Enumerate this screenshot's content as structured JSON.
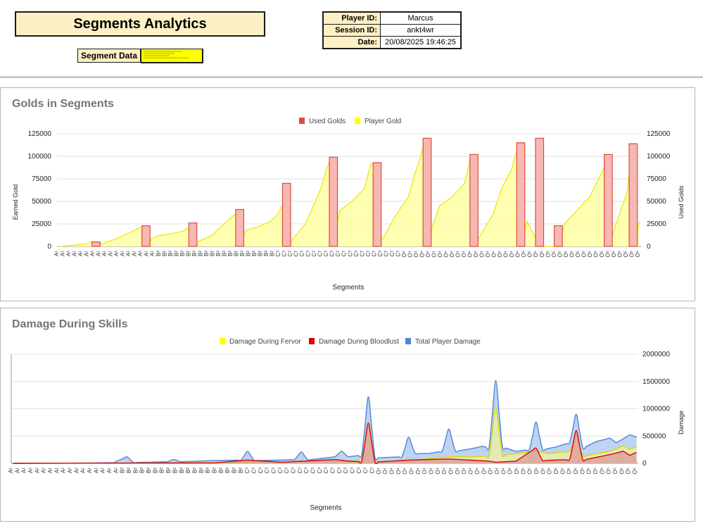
{
  "header": {
    "title": "Segments Analytics",
    "segment_data_label": "Segment Data",
    "segment_data_value": "==============================  =====  ============================= ======================== ================================ ==========",
    "info": [
      {
        "label": "Player ID:",
        "value": "Marcus"
      },
      {
        "label": "Session ID:",
        "value": "ankt4wr"
      },
      {
        "label": "Date:",
        "value": "20/08/2025 19:46:25"
      }
    ]
  },
  "colors": {
    "used_golds": "#dd4b3e",
    "player_gold": "#ffff00",
    "fervor": "#ffff00",
    "bloodlust": "#e00000",
    "total_damage": "#4a86d8"
  },
  "chart_data": [
    {
      "type": "area",
      "title": "Golds in Segments",
      "xlabel": "Segments",
      "ylabel": "Earned Gold",
      "ylabel_right": "Used Golds",
      "ylim": [
        0,
        125000
      ],
      "yticks": [
        0,
        25000,
        50000,
        75000,
        100000,
        125000
      ],
      "grid": true,
      "legend": "top-center",
      "x_labels": [
        "A¹",
        "A¹",
        "A¹",
        "A¹",
        "A¹",
        "A¹",
        "A¹",
        "A¹",
        "A¹",
        "A¹",
        "A¹",
        "A¹",
        "A¹",
        "A¹",
        "A¹",
        "A¹",
        "A¹",
        "B²",
        "B²",
        "B²",
        "B²",
        "B²",
        "B²",
        "B²",
        "B²",
        "B²",
        "B²",
        "B²",
        "B²",
        "B²",
        "B²",
        "B²",
        "B²",
        "B²",
        "B²",
        "B²",
        "B²",
        "C³",
        "C³",
        "C³",
        "C³",
        "C³",
        "C³",
        "C³",
        "C³",
        "C³",
        "C³",
        "C³",
        "C³",
        "C³",
        "C³",
        "C³",
        "C³",
        "C³",
        "C³",
        "C³",
        "C³",
        "C³",
        "O⁴",
        "O⁴",
        "O⁴",
        "O⁴",
        "O⁴",
        "O⁴",
        "O⁴",
        "O⁴",
        "O⁴",
        "O⁴",
        "O⁴",
        "O⁴",
        "O⁴",
        "O⁴",
        "O⁴",
        "O⁴",
        "O⁴",
        "O⁴",
        "O⁴",
        "O⁴",
        "O⁵",
        "O⁵",
        "O⁵",
        "O⁵",
        "O⁵",
        "O⁵",
        "O⁵",
        "O⁵",
        "O⁵",
        "O⁵",
        "O⁵",
        "O⁵",
        "O⁵",
        "O⁵",
        "O⁵",
        "O⁵",
        "O⁵",
        "O⁵",
        "O⁵",
        "O⁵"
      ],
      "segment_count": 187,
      "series": [
        {
          "name": "Used Golds",
          "kind": "spike",
          "points": [
            [
              12,
              5000
            ],
            [
              28,
              23000
            ],
            [
              43,
              26000
            ],
            [
              58,
              41000
            ],
            [
              73,
              70000
            ],
            [
              88,
              99000
            ],
            [
              102,
              93000
            ],
            [
              118,
              120000
            ],
            [
              133,
              102000
            ],
            [
              148,
              115000
            ],
            [
              154,
              120000
            ],
            [
              160,
              23000
            ],
            [
              176,
              102000
            ],
            [
              184,
              114000
            ]
          ]
        },
        {
          "name": "Player Gold",
          "kind": "area",
          "points": [
            [
              0,
              0
            ],
            [
              2,
              500
            ],
            [
              5,
              1500
            ],
            [
              9,
              3000
            ],
            [
              11,
              6000
            ],
            [
              12,
              0
            ],
            [
              14,
              3000
            ],
            [
              18,
              8000
            ],
            [
              22,
              14000
            ],
            [
              25,
              19000
            ],
            [
              27,
              23000
            ],
            [
              28,
              0
            ],
            [
              30,
              9000
            ],
            [
              32,
              12000
            ],
            [
              36,
              14000
            ],
            [
              40,
              17000
            ],
            [
              41,
              20000
            ],
            [
              42,
              20000
            ],
            [
              43,
              0
            ],
            [
              45,
              6000
            ],
            [
              49,
              12000
            ],
            [
              52,
              22000
            ],
            [
              56,
              34000
            ],
            [
              57,
              38000
            ],
            [
              58,
              0
            ],
            [
              60,
              18000
            ],
            [
              64,
              22000
            ],
            [
              68,
              28000
            ],
            [
              70,
              35000
            ],
            [
              72,
              48000
            ],
            [
              73,
              0
            ],
            [
              75,
              8000
            ],
            [
              79,
              25000
            ],
            [
              82,
              48000
            ],
            [
              84,
              65000
            ],
            [
              86,
              88000
            ],
            [
              87,
              95000
            ],
            [
              88,
              0
            ],
            [
              90,
              40000
            ],
            [
              94,
              50000
            ],
            [
              98,
              65000
            ],
            [
              100,
              92000
            ],
            [
              101,
              92000
            ],
            [
              102,
              0
            ],
            [
              104,
              10000
            ],
            [
              108,
              35000
            ],
            [
              112,
              55000
            ],
            [
              114,
              80000
            ],
            [
              116,
              100000
            ],
            [
              117,
              116000
            ],
            [
              118,
              0
            ],
            [
              120,
              25000
            ],
            [
              122,
              45000
            ],
            [
              126,
              55000
            ],
            [
              130,
              70000
            ],
            [
              132,
              100000
            ],
            [
              133,
              0
            ],
            [
              135,
              12000
            ],
            [
              139,
              35000
            ],
            [
              142,
              65000
            ],
            [
              145,
              85000
            ],
            [
              147,
              110000
            ],
            [
              148,
              0
            ],
            [
              150,
              28000
            ],
            [
              154,
              0
            ],
            [
              160,
              0
            ],
            [
              162,
              25000
            ],
            [
              166,
              40000
            ],
            [
              170,
              55000
            ],
            [
              173,
              75000
            ],
            [
              175,
              90000
            ],
            [
              176,
              0
            ],
            [
              178,
              20000
            ],
            [
              182,
              60000
            ],
            [
              183,
              90000
            ],
            [
              184,
              0
            ],
            [
              186,
              28000
            ]
          ]
        }
      ]
    },
    {
      "type": "area",
      "title": "Damage During Skills",
      "xlabel": "Segments",
      "ylabel": "Damage",
      "ylim": [
        0,
        2000000
      ],
      "yticks": [
        0,
        500000,
        1000000,
        1500000,
        2000000
      ],
      "grid": true,
      "legend": "top-center",
      "x_labels": [
        "A¹",
        "A¹",
        "A¹",
        "A¹",
        "A¹",
        "A¹",
        "A¹",
        "A¹",
        "A¹",
        "A¹",
        "A¹",
        "A¹",
        "A¹",
        "A¹",
        "A¹",
        "A¹",
        "A¹",
        "B²",
        "B²",
        "B²",
        "B²",
        "B²",
        "B²",
        "B²",
        "B²",
        "B²",
        "B²",
        "B²",
        "B²",
        "B²",
        "B²",
        "B²",
        "B²",
        "B²",
        "B²",
        "B²",
        "C³",
        "C³",
        "C³",
        "C³",
        "C³",
        "C³",
        "C³",
        "C³",
        "C³",
        "C³",
        "C³",
        "C³",
        "C³",
        "C³",
        "C³",
        "C³",
        "C³",
        "C³",
        "C³",
        "C³",
        "O⁴",
        "O⁴",
        "O⁴",
        "O⁴",
        "O⁴",
        "O⁴",
        "O⁴",
        "O⁴",
        "O⁴",
        "O⁴",
        "O⁴",
        "O⁴",
        "O⁴",
        "O⁴",
        "O⁴",
        "O⁴",
        "O⁴",
        "O⁴",
        "O⁴",
        "O⁴",
        "O⁵",
        "O⁵",
        "O⁵",
        "O⁵",
        "O⁵",
        "O⁵",
        "O⁵",
        "O⁵",
        "O⁵",
        "O⁵",
        "O⁵",
        "O⁵",
        "O⁵",
        "O⁵",
        "O⁵",
        "O⁵",
        "O⁵",
        "O⁵",
        "O⁵",
        "O⁵"
      ],
      "segment_count": 187,
      "series": [
        {
          "name": "Total Player Damage",
          "points": [
            [
              0,
              0
            ],
            [
              20,
              5000
            ],
            [
              30,
              12000
            ],
            [
              34,
              120000
            ],
            [
              36,
              15000
            ],
            [
              46,
              30000
            ],
            [
              48,
              70000
            ],
            [
              50,
              30000
            ],
            [
              60,
              50000
            ],
            [
              68,
              60000
            ],
            [
              70,
              220000
            ],
            [
              72,
              50000
            ],
            [
              80,
              60000
            ],
            [
              84,
              70000
            ],
            [
              86,
              210000
            ],
            [
              88,
              60000
            ],
            [
              96,
              120000
            ],
            [
              98,
              220000
            ],
            [
              100,
              120000
            ],
            [
              104,
              150000
            ],
            [
              106,
              1220000
            ],
            [
              108,
              100000
            ],
            [
              112,
              110000
            ],
            [
              116,
              120000
            ],
            [
              118,
              480000
            ],
            [
              120,
              180000
            ],
            [
              124,
              180000
            ],
            [
              128,
              220000
            ],
            [
              130,
              630000
            ],
            [
              132,
              220000
            ],
            [
              136,
              260000
            ],
            [
              140,
              310000
            ],
            [
              142,
              290000
            ],
            [
              144,
              1520000
            ],
            [
              146,
              300000
            ],
            [
              150,
              220000
            ],
            [
              154,
              250000
            ],
            [
              156,
              760000
            ],
            [
              158,
              250000
            ],
            [
              162,
              300000
            ],
            [
              166,
              380000
            ],
            [
              168,
              900000
            ],
            [
              170,
              280000
            ],
            [
              174,
              400000
            ],
            [
              178,
              460000
            ],
            [
              180,
              380000
            ],
            [
              184,
              520000
            ],
            [
              186,
              480000
            ]
          ]
        },
        {
          "name": "Damage During Fervor",
          "points": [
            [
              0,
              0
            ],
            [
              60,
              10000
            ],
            [
              96,
              40000
            ],
            [
              104,
              50000
            ],
            [
              106,
              680000
            ],
            [
              108,
              30000
            ],
            [
              118,
              50000
            ],
            [
              130,
              120000
            ],
            [
              136,
              120000
            ],
            [
              142,
              130000
            ],
            [
              144,
              1020000
            ],
            [
              146,
              150000
            ],
            [
              156,
              220000
            ],
            [
              160,
              180000
            ],
            [
              166,
              220000
            ],
            [
              168,
              500000
            ],
            [
              170,
              130000
            ],
            [
              178,
              220000
            ],
            [
              182,
              320000
            ],
            [
              184,
              260000
            ],
            [
              186,
              300000
            ]
          ]
        },
        {
          "name": "Damage During Bloodlust",
          "points": [
            [
              0,
              0
            ],
            [
              60,
              8000
            ],
            [
              70,
              60000
            ],
            [
              80,
              20000
            ],
            [
              96,
              70000
            ],
            [
              100,
              40000
            ],
            [
              104,
              30000
            ],
            [
              106,
              740000
            ],
            [
              108,
              20000
            ],
            [
              118,
              60000
            ],
            [
              130,
              80000
            ],
            [
              136,
              60000
            ],
            [
              142,
              40000
            ],
            [
              144,
              20000
            ],
            [
              150,
              40000
            ],
            [
              156,
              280000
            ],
            [
              158,
              50000
            ],
            [
              162,
              60000
            ],
            [
              166,
              70000
            ],
            [
              168,
              600000
            ],
            [
              170,
              60000
            ],
            [
              178,
              160000
            ],
            [
              182,
              220000
            ],
            [
              184,
              150000
            ],
            [
              186,
              200000
            ]
          ]
        }
      ]
    }
  ]
}
